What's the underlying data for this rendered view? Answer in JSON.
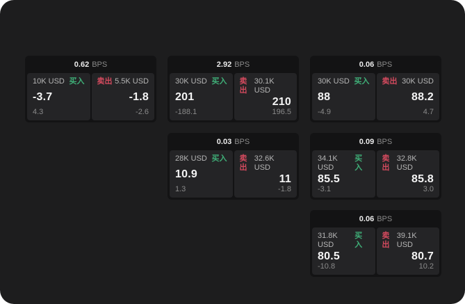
{
  "labels": {
    "bps_unit": "BPS",
    "buy": "买入",
    "sell": "卖出"
  },
  "colors": {
    "background": "#1d1d1e",
    "card": "#131314",
    "panel": "#242426",
    "buy_green": "#3fae77",
    "sell_red": "#d34a5e"
  },
  "cards": [
    {
      "bps": "0.62",
      "buy": {
        "amount": "10K USD",
        "value": "-3.7",
        "sub": "4.3"
      },
      "sell": {
        "amount": "5.5K USD",
        "value": "-1.8",
        "sub": "-2.6"
      }
    },
    {
      "bps": "2.92",
      "buy": {
        "amount": "30K USD",
        "value": "201",
        "sub": "-188.1"
      },
      "sell": {
        "amount": "30.1K USD",
        "value": "210",
        "sub": "196.5"
      }
    },
    {
      "bps": "0.06",
      "buy": {
        "amount": "30K USD",
        "value": "88",
        "sub": "-4.9"
      },
      "sell": {
        "amount": "30K USD",
        "value": "88.2",
        "sub": "4.7"
      }
    },
    {
      "bps": "0.03",
      "buy": {
        "amount": "28K USD",
        "value": "10.9",
        "sub": "1.3"
      },
      "sell": {
        "amount": "32.6K USD",
        "value": "11",
        "sub": "-1.8"
      }
    },
    {
      "bps": "0.09",
      "buy": {
        "amount": "34.1K USD",
        "value": "85.5",
        "sub": "-3.1"
      },
      "sell": {
        "amount": "32.8K USD",
        "value": "85.8",
        "sub": "3.0"
      }
    },
    {
      "bps": "0.06",
      "buy": {
        "amount": "31.8K USD",
        "value": "80.5",
        "sub": "-10.8"
      },
      "sell": {
        "amount": "39.1K USD",
        "value": "80.7",
        "sub": "10.2"
      }
    }
  ]
}
